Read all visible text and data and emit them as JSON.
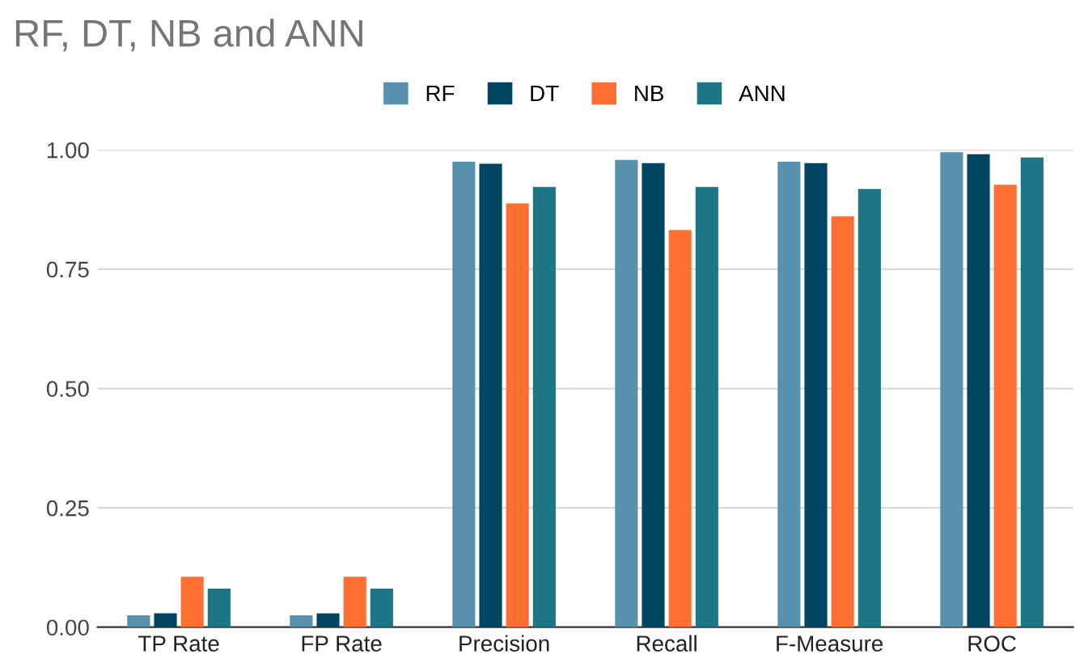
{
  "chart_data": {
    "type": "bar",
    "title": "RF, DT, NB and ANN",
    "categories": [
      "TP Rate",
      "FP Rate",
      "Precision",
      "Recall",
      "F-Measure",
      "ROC"
    ],
    "series": [
      {
        "name": "RF",
        "color": "#5891ad",
        "values": [
          0.025,
          0.025,
          0.975,
          0.979,
          0.975,
          0.995
        ]
      },
      {
        "name": "DT",
        "color": "#004561",
        "values": [
          0.029,
          0.029,
          0.971,
          0.972,
          0.972,
          0.991
        ]
      },
      {
        "name": "NB",
        "color": "#ff6f31",
        "values": [
          0.106,
          0.106,
          0.888,
          0.832,
          0.861,
          0.927
        ]
      },
      {
        "name": "ANN",
        "color": "#1c7685",
        "values": [
          0.081,
          0.081,
          0.922,
          0.922,
          0.918,
          0.984
        ]
      }
    ],
    "ylim": [
      0,
      1
    ],
    "yticks": [
      {
        "value": 0,
        "label": "0.00"
      },
      {
        "value": 0.25,
        "label": "0.25"
      },
      {
        "value": 0.5,
        "label": "0.50"
      },
      {
        "value": 0.75,
        "label": "0.75"
      },
      {
        "value": 1,
        "label": "1.00"
      }
    ],
    "grid": "y",
    "legend": "top"
  }
}
